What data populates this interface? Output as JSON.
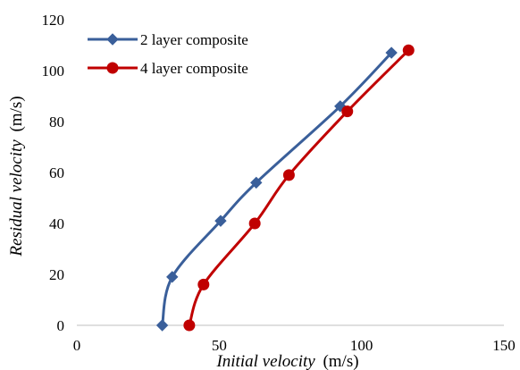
{
  "chart_data": {
    "type": "line",
    "xlabel_italic": "Initial velocity",
    "xlabel_unit": "(m/s)",
    "ylabel_italic": "Residual velocity",
    "ylabel_unit": "(m/s)",
    "xlim": [
      0,
      150
    ],
    "ylim": [
      0,
      120
    ],
    "x_ticks": [
      0,
      50,
      100,
      150
    ],
    "y_ticks": [
      0,
      20,
      40,
      60,
      80,
      100,
      120
    ],
    "grid": false,
    "legend_position": "top-left",
    "smooth": true,
    "series": [
      {
        "name": "2 layer composite",
        "color": "#3A5F9A",
        "marker": "diamond",
        "points": [
          [
            30,
            0
          ],
          [
            33.5,
            19
          ],
          [
            50.5,
            41
          ],
          [
            63,
            56
          ],
          [
            92.5,
            86
          ],
          [
            110.5,
            107
          ]
        ]
      },
      {
        "name": "4 layer composite",
        "color": "#C00000",
        "marker": "circle",
        "points": [
          [
            39.5,
            0
          ],
          [
            44.5,
            16
          ],
          [
            62.5,
            40
          ],
          [
            74.5,
            59
          ],
          [
            95,
            84
          ],
          [
            116.5,
            108
          ]
        ]
      }
    ]
  }
}
